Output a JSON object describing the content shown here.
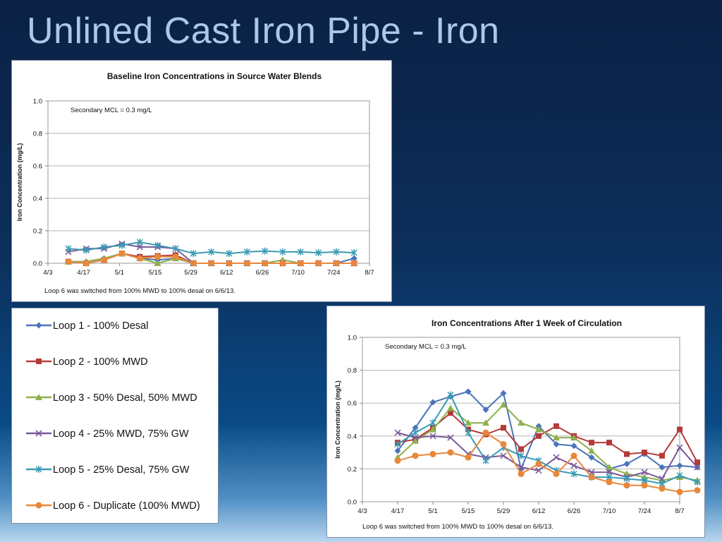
{
  "slide_title": "Unlined Cast Iron Pipe - Iron",
  "legend": [
    {
      "label": "Loop 1 - 100% Desal",
      "color": "#4a74b8",
      "marker": "diamond"
    },
    {
      "label": "Loop 2 - 100% MWD",
      "color": "#b33c3a",
      "marker": "square"
    },
    {
      "label": "Loop 3 - 50% Desal, 50% MWD",
      "color": "#8eb04c",
      "marker": "triangle"
    },
    {
      "label": "Loop 4 - 25% MWD, 75% GW",
      "color": "#7a5a9a",
      "marker": "x"
    },
    {
      "label": "Loop 5 - 25% Desal, 75% GW",
      "color": "#3a9bb4",
      "marker": "star"
    },
    {
      "label": "Loop 6 - Duplicate (100% MWD)",
      "color": "#e8873a",
      "marker": "circle"
    }
  ],
  "chart_data": [
    {
      "type": "line",
      "title": "Baseline Iron Concentrations in Source Water Blends",
      "ylabel": "Iron Concentration (mg/L)",
      "xlabel": "",
      "annotation": "Secondary MCL = 0.3 mg/L",
      "footnote": "Loop 6 was switched from 100% MWD to 100% desal on 6/6/13.",
      "x_ticks": [
        "4/3",
        "4/17",
        "5/1",
        "5/15",
        "5/29",
        "6/12",
        "6/26",
        "7/10",
        "7/24",
        "8/7"
      ],
      "y_ticks": [
        "0.0",
        "0.2",
        "0.4",
        "0.6",
        "0.8",
        "1.0"
      ],
      "ylim": [
        0,
        1.0
      ],
      "grid": true,
      "series": [
        {
          "name": "Loop 1 - 100% Desal",
          "points": [
            [
              8,
              0.01
            ],
            [
              15,
              0.01
            ],
            [
              22,
              0.03
            ],
            [
              29,
              0.06
            ],
            [
              36,
              0.03
            ],
            [
              43,
              0.02
            ],
            [
              50,
              0.03
            ],
            [
              57,
              0
            ],
            [
              64,
              0
            ],
            [
              71,
              0
            ],
            [
              78,
              0
            ],
            [
              85,
              0
            ],
            [
              92,
              0
            ],
            [
              99,
              0
            ],
            [
              106,
              0
            ],
            [
              113,
              0
            ],
            [
              120,
              0.03
            ]
          ]
        },
        {
          "name": "Loop 2 - 100% MWD",
          "points": [
            [
              8,
              0.01
            ],
            [
              15,
              0
            ],
            [
              22,
              0.02
            ],
            [
              29,
              0.06
            ],
            [
              36,
              0.04
            ],
            [
              43,
              0.045
            ],
            [
              50,
              0.05
            ],
            [
              57,
              0
            ],
            [
              64,
              0
            ],
            [
              71,
              0
            ],
            [
              78,
              0
            ],
            [
              85,
              0
            ],
            [
              92,
              0
            ],
            [
              99,
              0
            ],
            [
              106,
              0
            ],
            [
              113,
              0
            ],
            [
              120,
              0
            ]
          ]
        },
        {
          "name": "Loop 3 - 50% Desal, 50% MWD",
          "points": [
            [
              8,
              0.01
            ],
            [
              15,
              0.01
            ],
            [
              22,
              0.03
            ],
            [
              29,
              0.06
            ],
            [
              36,
              0.03
            ],
            [
              43,
              0
            ],
            [
              50,
              0.03
            ],
            [
              57,
              0
            ],
            [
              64,
              0
            ],
            [
              71,
              0
            ],
            [
              78,
              0
            ],
            [
              85,
              0
            ],
            [
              92,
              0.02
            ],
            [
              99,
              0
            ],
            [
              106,
              0
            ],
            [
              113,
              0
            ],
            [
              120,
              0
            ]
          ]
        },
        {
          "name": "Loop 4 - 25% MWD, 75% GW",
          "points": [
            [
              8,
              0.07
            ],
            [
              15,
              0.09
            ],
            [
              22,
              0.09
            ],
            [
              29,
              0.12
            ],
            [
              36,
              0.1
            ],
            [
              43,
              0.1
            ],
            [
              50,
              0.09
            ],
            [
              57,
              0
            ],
            [
              64,
              0
            ],
            [
              71,
              0
            ],
            [
              78,
              0
            ],
            [
              85,
              0
            ],
            [
              92,
              0
            ],
            [
              99,
              0
            ],
            [
              106,
              0
            ],
            [
              113,
              0
            ],
            [
              120,
              0
            ]
          ]
        },
        {
          "name": "Loop 5 - 25% Desal, 75% GW",
          "points": [
            [
              8,
              0.09
            ],
            [
              15,
              0.08
            ],
            [
              22,
              0.1
            ],
            [
              29,
              0.11
            ],
            [
              36,
              0.13
            ],
            [
              43,
              0.11
            ],
            [
              50,
              0.09
            ],
            [
              57,
              0.06
            ],
            [
              64,
              0.07
            ],
            [
              71,
              0.06
            ],
            [
              78,
              0.07
            ],
            [
              85,
              0.075
            ],
            [
              92,
              0.07
            ],
            [
              99,
              0.07
            ],
            [
              106,
              0.065
            ],
            [
              113,
              0.07
            ],
            [
              120,
              0.065
            ]
          ]
        },
        {
          "name": "Loop 6 - Duplicate (100% MWD)",
          "points": [
            [
              8,
              0.01
            ],
            [
              15,
              0
            ],
            [
              22,
              0.02
            ],
            [
              29,
              0.06
            ],
            [
              36,
              0.03
            ],
            [
              43,
              0.04
            ],
            [
              50,
              0.04
            ],
            [
              57,
              0
            ],
            [
              64,
              0
            ],
            [
              71,
              0
            ],
            [
              78,
              0
            ],
            [
              85,
              0
            ],
            [
              92,
              0
            ],
            [
              99,
              0
            ],
            [
              106,
              0
            ],
            [
              113,
              0
            ],
            [
              120,
              0
            ]
          ]
        }
      ]
    },
    {
      "type": "line",
      "title": "Iron Concentrations After 1 Week of Circulation",
      "ylabel": "Iron Concentration (mg/L)",
      "xlabel": "",
      "annotation": "Secondary MCL = 0.3 mg/L",
      "footnote": "Loop 6 was switched from 100% MWD to 100% desal on 6/6/13.",
      "x_ticks": [
        "4/3",
        "4/17",
        "5/1",
        "5/15",
        "5/29",
        "6/12",
        "6/26",
        "7/10",
        "7/24",
        "8/7"
      ],
      "y_ticks": [
        "0.0",
        "0.2",
        "0.4",
        "0.6",
        "0.8",
        "1.0"
      ],
      "ylim": [
        0,
        1.0
      ],
      "grid": true,
      "series": [
        {
          "name": "Loop 1 - 100% Desal",
          "points": [
            [
              14,
              0.31
            ],
            [
              21,
              0.45
            ],
            [
              28,
              0.605
            ],
            [
              35,
              0.64
            ],
            [
              42,
              0.67
            ],
            [
              49,
              0.56
            ],
            [
              56,
              0.66
            ],
            [
              63,
              0.2
            ],
            [
              70,
              0.46
            ],
            [
              77,
              0.35
            ],
            [
              84,
              0.34
            ],
            [
              91,
              0.27
            ],
            [
              98,
              0.2
            ],
            [
              105,
              0.23
            ],
            [
              112,
              0.29
            ],
            [
              119,
              0.21
            ],
            [
              126,
              0.22
            ],
            [
              133,
              0.21
            ]
          ]
        },
        {
          "name": "Loop 2 - 100% MWD",
          "points": [
            [
              14,
              0.36
            ],
            [
              21,
              0.38
            ],
            [
              28,
              0.45
            ],
            [
              35,
              0.54
            ],
            [
              42,
              0.44
            ],
            [
              49,
              0.41
            ],
            [
              56,
              0.45
            ],
            [
              63,
              0.32
            ],
            [
              70,
              0.4
            ],
            [
              77,
              0.46
            ],
            [
              84,
              0.4
            ],
            [
              91,
              0.36
            ],
            [
              98,
              0.36
            ],
            [
              105,
              0.29
            ],
            [
              112,
              0.3
            ],
            [
              119,
              0.28
            ],
            [
              126,
              0.44
            ],
            [
              133,
              0.24
            ]
          ]
        },
        {
          "name": "Loop 3 - 50% Desal, 50% MWD",
          "points": [
            [
              14,
              0.27
            ],
            [
              21,
              0.37
            ],
            [
              28,
              0.44
            ],
            [
              35,
              0.57
            ],
            [
              42,
              0.48
            ],
            [
              49,
              0.48
            ],
            [
              56,
              0.59
            ],
            [
              63,
              0.48
            ],
            [
              70,
              0.44
            ],
            [
              77,
              0.39
            ],
            [
              84,
              0.39
            ],
            [
              91,
              0.31
            ],
            [
              98,
              0.21
            ],
            [
              105,
              0.17
            ],
            [
              112,
              0.15
            ],
            [
              119,
              0.13
            ],
            [
              126,
              0.15
            ],
            [
              133,
              0.13
            ]
          ]
        },
        {
          "name": "Loop 4 - 25% MWD, 75% GW",
          "points": [
            [
              14,
              0.42
            ],
            [
              21,
              0.39
            ],
            [
              28,
              0.4
            ],
            [
              35,
              0.39
            ],
            [
              42,
              0.29
            ],
            [
              49,
              0.27
            ],
            [
              56,
              0.28
            ],
            [
              63,
              0.21
            ],
            [
              70,
              0.19
            ],
            [
              77,
              0.27
            ],
            [
              84,
              0.22
            ],
            [
              91,
              0.18
            ],
            [
              98,
              0.18
            ],
            [
              105,
              0.15
            ],
            [
              112,
              0.18
            ],
            [
              119,
              0.14
            ],
            [
              126,
              0.33
            ],
            [
              133,
              0.21
            ]
          ]
        },
        {
          "name": "Loop 5 - 25% Desal, 75% GW",
          "points": [
            [
              14,
              0.35
            ],
            [
              21,
              0.42
            ],
            [
              28,
              0.48
            ],
            [
              35,
              0.65
            ],
            [
              42,
              0.42
            ],
            [
              49,
              0.25
            ],
            [
              56,
              0.33
            ],
            [
              63,
              0.28
            ],
            [
              70,
              0.25
            ],
            [
              77,
              0.19
            ],
            [
              84,
              0.17
            ],
            [
              91,
              0.15
            ],
            [
              98,
              0.15
            ],
            [
              105,
              0.14
            ],
            [
              112,
              0.13
            ],
            [
              119,
              0.11
            ],
            [
              126,
              0.16
            ],
            [
              133,
              0.12
            ]
          ]
        },
        {
          "name": "Loop 6 - Duplicate (100% MWD)",
          "points": [
            [
              14,
              0.25
            ],
            [
              21,
              0.28
            ],
            [
              28,
              0.29
            ],
            [
              35,
              0.3
            ],
            [
              42,
              0.27
            ],
            [
              49,
              0.42
            ],
            [
              56,
              0.35
            ],
            [
              63,
              0.17
            ],
            [
              70,
              0.23
            ],
            [
              77,
              0.17
            ],
            [
              84,
              0.28
            ],
            [
              91,
              0.15
            ],
            [
              98,
              0.12
            ],
            [
              105,
              0.1
            ],
            [
              112,
              0.1
            ],
            [
              119,
              0.08
            ],
            [
              126,
              0.06
            ],
            [
              133,
              0.07
            ]
          ]
        }
      ]
    }
  ]
}
